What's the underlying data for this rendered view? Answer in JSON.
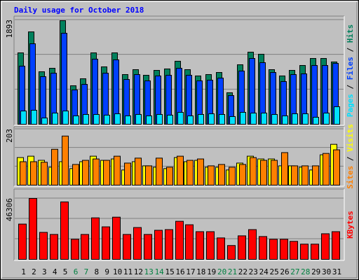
{
  "chart_data": [
    {
      "type": "bar",
      "title": "Daily usage for October 2018",
      "categories": [
        "1",
        "2",
        "3",
        "4",
        "5",
        "6",
        "7",
        "8",
        "9",
        "10",
        "11",
        "12",
        "13",
        "14",
        "15",
        "16",
        "17",
        "18",
        "19",
        "20",
        "21",
        "22",
        "23",
        "24",
        "25",
        "26",
        "27",
        "28",
        "29",
        "30",
        "31"
      ],
      "category_colors": [
        "#000000",
        "#000000",
        "#000000",
        "#000000",
        "#000000",
        "#008040",
        "#008040",
        "#000000",
        "#000000",
        "#000000",
        "#000000",
        "#000000",
        "#008040",
        "#008040",
        "#000000",
        "#000000",
        "#000000",
        "#000000",
        "#000000",
        "#008040",
        "#008040",
        "#000000",
        "#000000",
        "#000000",
        "#000000",
        "#000000",
        "#008040",
        "#008040",
        "#000000",
        "#000000",
        "#000000"
      ],
      "ylim": [
        0,
        1893
      ],
      "yticks": [
        1893
      ],
      "series": [
        {
          "name": "Hits",
          "color": "#00805c",
          "values": [
            1296,
            1677,
            953,
            1016,
            1880,
            699,
            826,
            1296,
            1042,
            1296,
            902,
            991,
            889,
            978,
            1004,
            1144,
            991,
            877,
            902,
            940,
            572,
            1080,
            1309,
            1271,
            991,
            877,
            978,
            1067,
            1194,
            1194,
            1131
          ]
        },
        {
          "name": "Files",
          "color": "#0040ff",
          "values": [
            1055,
            1461,
            864,
            927,
            1652,
            623,
            724,
            1181,
            927,
            1169,
            813,
            902,
            788,
            877,
            889,
            1016,
            889,
            788,
            800,
            838,
            521,
            966,
            1194,
            1118,
            940,
            775,
            902,
            915,
            1067,
            1067,
            1105
          ]
        },
        {
          "name": "Pages",
          "color": "#00e0ff",
          "values": [
            241,
            254,
            114,
            203,
            241,
            152,
            178,
            178,
            165,
            190,
            152,
            178,
            152,
            178,
            165,
            216,
            152,
            178,
            190,
            178,
            140,
            216,
            203,
            203,
            178,
            152,
            190,
            190,
            127,
            203,
            318
          ]
        }
      ]
    },
    {
      "type": "bar",
      "ylim": [
        0,
        203
      ],
      "yticks": [
        203
      ],
      "series": [
        {
          "name": "Visits",
          "color": "#ffff00",
          "values": [
            100,
            105,
            90,
            65,
            85,
            60,
            85,
            105,
            90,
            95,
            55,
            85,
            70,
            65,
            60,
            100,
            85,
            90,
            65,
            65,
            55,
            80,
            105,
            95,
            95,
            70,
            70,
            65,
            55,
            110,
            148
          ]
        },
        {
          "name": "Sites",
          "color": "#ff8000",
          "values": [
            85,
            85,
            83,
            130,
            178,
            75,
            90,
            95,
            90,
            105,
            80,
            98,
            70,
            98,
            65,
            105,
            90,
            95,
            70,
            75,
            65,
            75,
            100,
            90,
            90,
            118,
            70,
            70,
            70,
            115,
            128
          ]
        }
      ]
    },
    {
      "type": "bar",
      "ylim": [
        0,
        46306
      ],
      "yticks": [
        46306
      ],
      "series": [
        {
          "name": "KBytes",
          "color": "#ff0000",
          "values": [
            26830,
            46306,
            20520,
            18940,
            43670,
            15260,
            18940,
            31570,
            24730,
            32090,
            18940,
            24200,
            18940,
            22100,
            22620,
            28940,
            26310,
            21050,
            21050,
            16310,
            10520,
            17890,
            22620,
            17360,
            15260,
            15260,
            13680,
            11570,
            11570,
            19470,
            21050
          ]
        }
      ]
    }
  ]
}
